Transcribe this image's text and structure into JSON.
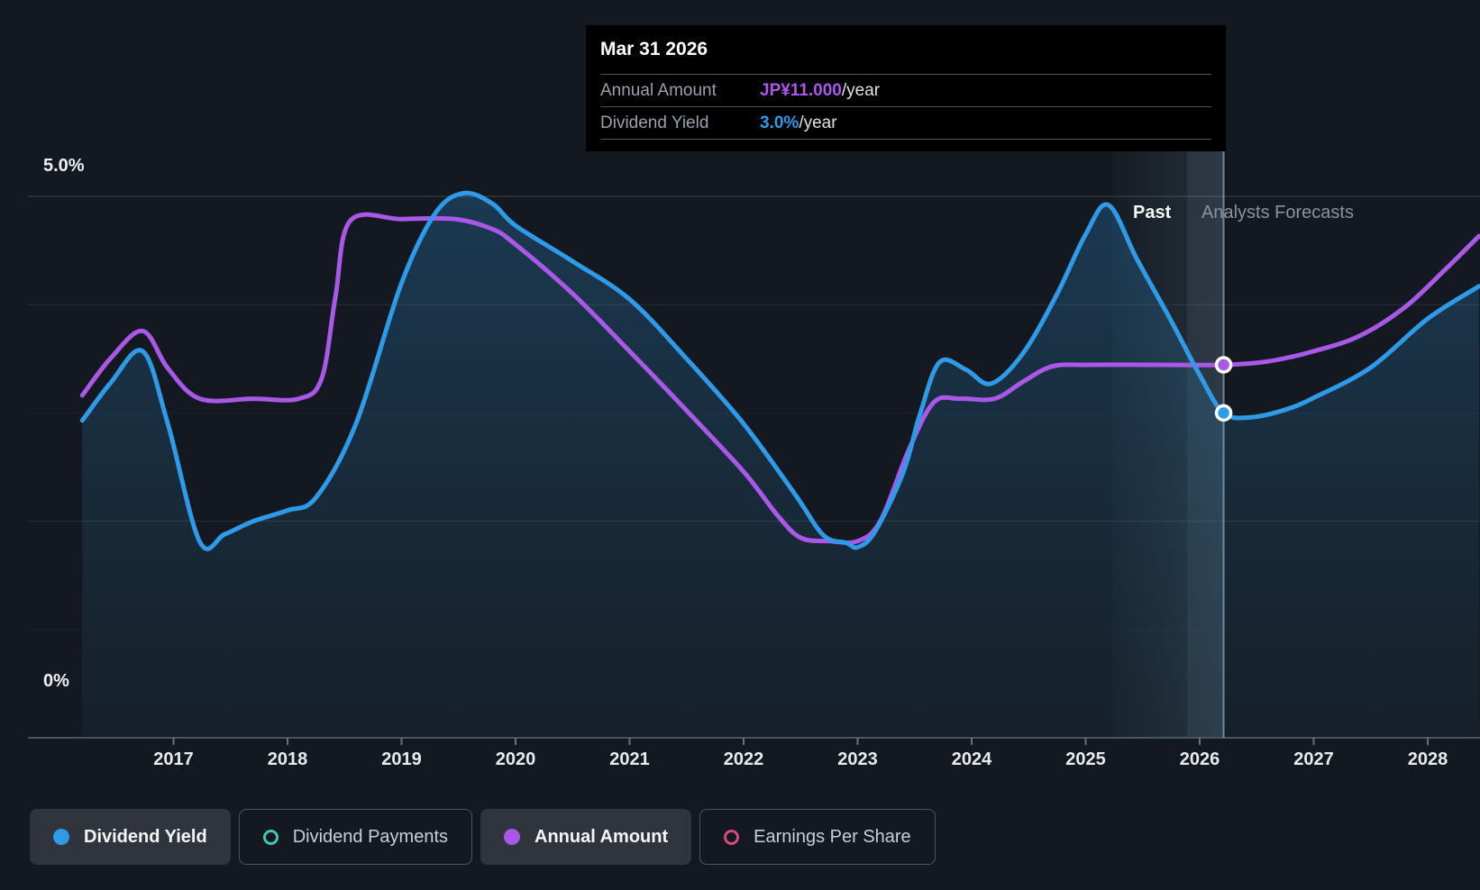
{
  "tooltip": {
    "date": "Mar 31 2026",
    "rows": [
      {
        "label": "Annual Amount",
        "value": "JP¥11.000",
        "suffix": "/year",
        "color": "#a958e8"
      },
      {
        "label": "Dividend Yield",
        "value": "3.0%",
        "suffix": "/year",
        "color": "#2f9be8"
      }
    ]
  },
  "zones": {
    "past": "Past",
    "forecast": "Analysts Forecasts"
  },
  "y_axis": {
    "top_label": "5.0%",
    "bottom_label": "0%"
  },
  "x_axis": {
    "years": [
      "2017",
      "2018",
      "2019",
      "2020",
      "2021",
      "2022",
      "2023",
      "2024",
      "2025",
      "2026",
      "2027",
      "2028"
    ]
  },
  "legend": [
    {
      "label": "Dividend Yield",
      "marker": "filled-dot",
      "color": "#2f9be8",
      "state": "active"
    },
    {
      "label": "Dividend Payments",
      "marker": "outline-ring",
      "color": "#43c6b3",
      "state": "inactive"
    },
    {
      "label": "Annual Amount",
      "marker": "filled-dot",
      "color": "#a958e8",
      "state": "active"
    },
    {
      "label": "Earnings Per Share",
      "marker": "outline-ring",
      "color": "#d9487e",
      "state": "inactive"
    }
  ],
  "colors": {
    "background": "#141921",
    "dividend_yield_line": "#2f9be8",
    "annual_amount_line": "#a958e8",
    "area_fill": "#3e96c6",
    "divider": "#a8d2e8",
    "tooltip_bg": "#000000",
    "gridline": "#ffffff"
  },
  "chart_data": {
    "type": "line",
    "x_range": [
      2016.2,
      2028.45
    ],
    "yield_axis": {
      "min": 0,
      "max": 5.0,
      "unit": "%",
      "labeled_ticks": [
        "5.0%",
        "0%"
      ],
      "gridline_step": 1.0
    },
    "amount_axis": {
      "unit": "JP¥",
      "known_point": {
        "year": 2026.21,
        "value": 11.0
      }
    },
    "divider_year": 2026.21,
    "highlight_band": {
      "start_year": 2025.23,
      "inner_year": 2025.89,
      "end_year": 2026.21
    },
    "legend_position": "bottom",
    "series": [
      {
        "name": "Dividend Yield",
        "unit": "%",
        "color": "#2f9be8",
        "style": "line+area",
        "points": [
          [
            2016.2,
            2.93
          ],
          [
            2016.45,
            3.28
          ],
          [
            2016.73,
            3.57
          ],
          [
            2016.95,
            2.9
          ],
          [
            2017.23,
            1.81
          ],
          [
            2017.45,
            1.88
          ],
          [
            2017.7,
            2.0
          ],
          [
            2018.0,
            2.1
          ],
          [
            2018.25,
            2.22
          ],
          [
            2018.6,
            2.9
          ],
          [
            2019.0,
            4.2
          ],
          [
            2019.3,
            4.85
          ],
          [
            2019.55,
            5.03
          ],
          [
            2019.8,
            4.93
          ],
          [
            2020.0,
            4.73
          ],
          [
            2020.5,
            4.4
          ],
          [
            2021.0,
            4.05
          ],
          [
            2021.5,
            3.5
          ],
          [
            2022.0,
            2.9
          ],
          [
            2022.45,
            2.25
          ],
          [
            2022.7,
            1.87
          ],
          [
            2022.9,
            1.8
          ],
          [
            2023.0,
            1.76
          ],
          [
            2023.15,
            1.9
          ],
          [
            2023.4,
            2.45
          ],
          [
            2023.55,
            3.0
          ],
          [
            2023.72,
            3.47
          ],
          [
            2023.95,
            3.4
          ],
          [
            2024.17,
            3.27
          ],
          [
            2024.45,
            3.55
          ],
          [
            2024.75,
            4.1
          ],
          [
            2025.0,
            4.65
          ],
          [
            2025.2,
            4.92
          ],
          [
            2025.45,
            4.42
          ],
          [
            2025.75,
            3.85
          ],
          [
            2026.0,
            3.35
          ],
          [
            2026.21,
            3.0
          ],
          [
            2026.45,
            2.96
          ],
          [
            2026.75,
            3.03
          ],
          [
            2027.0,
            3.14
          ],
          [
            2027.5,
            3.42
          ],
          [
            2028.0,
            3.87
          ],
          [
            2028.45,
            4.17
          ]
        ]
      },
      {
        "name": "Annual Amount",
        "unit": "JP¥",
        "color": "#a958e8",
        "style": "line",
        "points": [
          [
            2016.2,
            10.1
          ],
          [
            2016.45,
            11.2
          ],
          [
            2016.73,
            12.0
          ],
          [
            2016.95,
            10.9
          ],
          [
            2017.23,
            10.0
          ],
          [
            2017.7,
            10.0
          ],
          [
            2018.1,
            10.0
          ],
          [
            2018.3,
            10.6
          ],
          [
            2018.42,
            13.0
          ],
          [
            2018.55,
            15.25
          ],
          [
            2019.0,
            15.3
          ],
          [
            2019.47,
            15.3
          ],
          [
            2019.8,
            15.0
          ],
          [
            2020.0,
            14.55
          ],
          [
            2020.5,
            13.1
          ],
          [
            2021.0,
            11.4
          ],
          [
            2021.5,
            9.65
          ],
          [
            2022.0,
            7.85
          ],
          [
            2022.3,
            6.55
          ],
          [
            2022.5,
            5.9
          ],
          [
            2022.75,
            5.8
          ],
          [
            2023.0,
            5.8
          ],
          [
            2023.2,
            6.4
          ],
          [
            2023.45,
            8.5
          ],
          [
            2023.67,
            9.9
          ],
          [
            2023.9,
            10.0
          ],
          [
            2024.2,
            10.0
          ],
          [
            2024.45,
            10.5
          ],
          [
            2024.7,
            10.95
          ],
          [
            2025.0,
            11.0
          ],
          [
            2025.6,
            11.0
          ],
          [
            2026.21,
            11.0
          ],
          [
            2026.6,
            11.1
          ],
          [
            2027.0,
            11.4
          ],
          [
            2027.4,
            11.85
          ],
          [
            2027.8,
            12.7
          ],
          [
            2028.15,
            13.8
          ],
          [
            2028.45,
            14.8
          ]
        ]
      }
    ],
    "markers": [
      {
        "series": "Annual Amount",
        "year": 2026.21,
        "value": 11.0
      },
      {
        "series": "Dividend Yield",
        "year": 2026.21,
        "value": 3.0
      }
    ]
  }
}
